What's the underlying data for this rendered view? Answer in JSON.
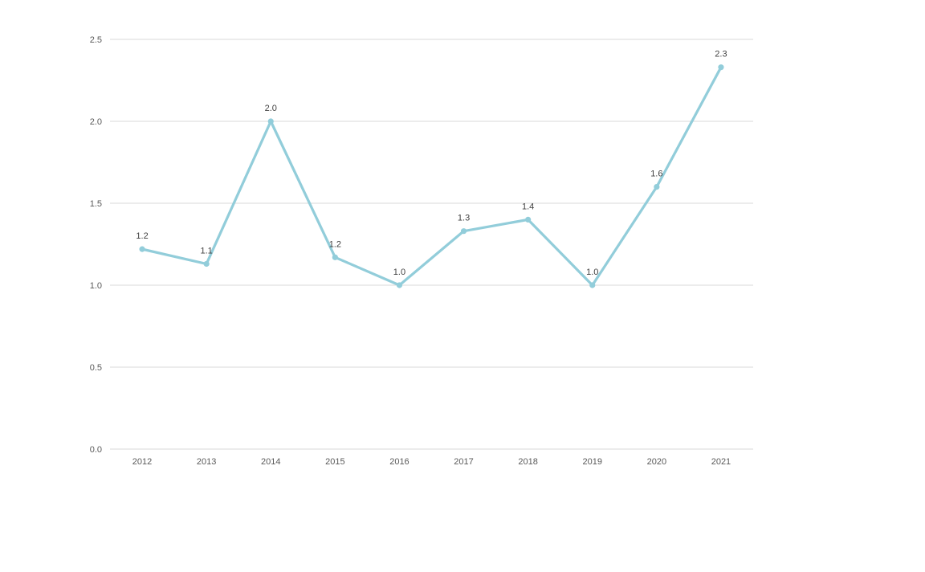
{
  "chart_data": {
    "type": "line",
    "title": "",
    "xlabel": "",
    "ylabel": "",
    "categories": [
      "2012",
      "2013",
      "2014",
      "2015",
      "2016",
      "2017",
      "2018",
      "2019",
      "2020",
      "2021"
    ],
    "values": [
      1.22,
      1.13,
      2.0,
      1.17,
      1.0,
      1.33,
      1.4,
      1.0,
      1.6,
      2.33
    ],
    "point_labels": [
      "1.2",
      "1.1",
      "2.0",
      "1.2",
      "1.0",
      "1.3",
      "1.4",
      "1.0",
      "1.6",
      "2.3"
    ],
    "ylim": [
      0,
      2.5
    ],
    "yticks": [
      0,
      0.5,
      1.0,
      1.5,
      2.0,
      2.5
    ],
    "ytick_labels": [
      "0.0",
      "0.5",
      "1.0",
      "1.5",
      "2.0",
      "2.5"
    ],
    "grid": "horizontal",
    "legend": "none",
    "colors": {
      "line": "#92cdda",
      "marker": "#92cdda",
      "gridline": "#d9d9d9",
      "axis_line": "#d9d9d9",
      "axis_label": "#595959",
      "data_label": "#404040",
      "background": "#ffffff"
    }
  }
}
